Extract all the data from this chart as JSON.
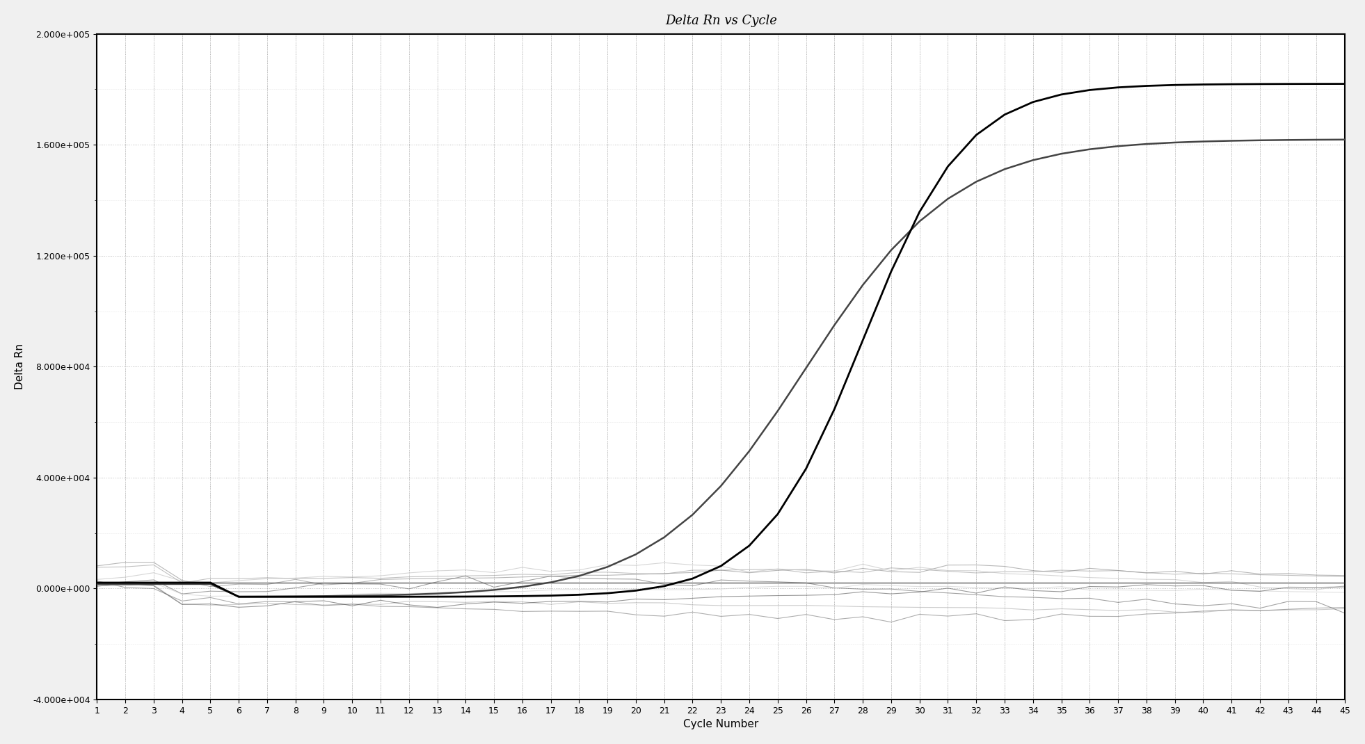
{
  "title": "Delta Rn vs Cycle",
  "xlabel": "Cycle Number",
  "ylabel": "Delta Rn",
  "xlim": [
    1,
    45
  ],
  "ylim": [
    -40000,
    200000
  ],
  "yticks": [
    -40000,
    0,
    40000,
    80000,
    120000,
    160000,
    200000
  ],
  "ytick_labels": [
    "-4.000e+004",
    "0.000e+000",
    "4.000e+004",
    "8.000e+004",
    "1.200e+005",
    "1.600e+005",
    "2.000e+005"
  ],
  "xticks": [
    1,
    2,
    3,
    4,
    5,
    6,
    7,
    8,
    9,
    10,
    11,
    12,
    13,
    14,
    15,
    16,
    17,
    18,
    19,
    20,
    21,
    22,
    23,
    24,
    25,
    26,
    27,
    28,
    29,
    30,
    31,
    32,
    33,
    34,
    35,
    36,
    37,
    38,
    39,
    40,
    41,
    42,
    43,
    44,
    45
  ],
  "background_color": "#f0f0f0",
  "plot_bg_color": "#ffffff",
  "grid_color": "#aaaaaa",
  "line1_color": "#000000",
  "line2_color": "#555555",
  "noise_color": "#888888",
  "title_fontsize": 13,
  "axis_label_fontsize": 11,
  "tick_fontsize": 9
}
